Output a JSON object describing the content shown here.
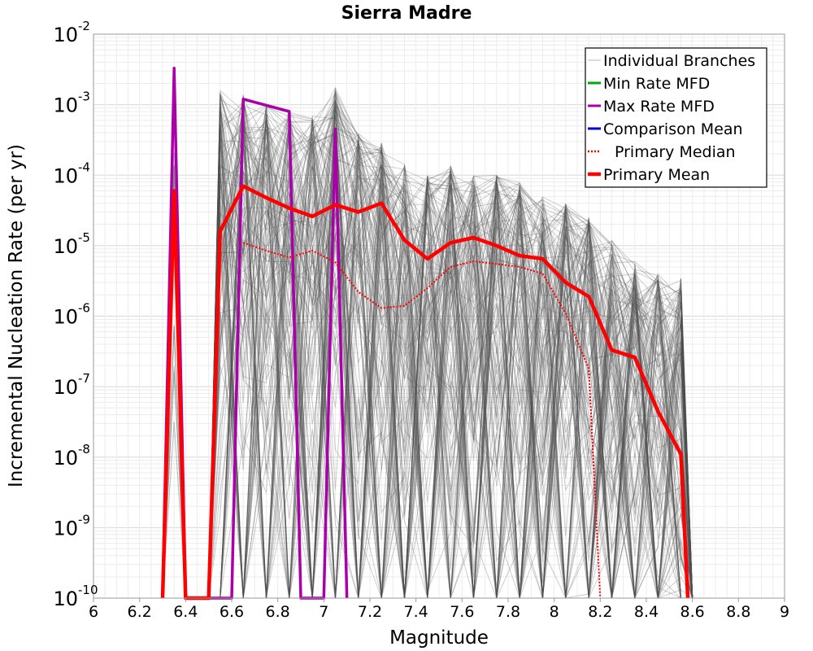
{
  "chart_data": {
    "type": "line",
    "title": "Sierra Madre",
    "xlabel": "Magnitude",
    "ylabel": "Incremental Nucleation Rate (per yr)",
    "xlim": [
      6,
      9
    ],
    "ylim": [
      1e-10,
      0.01
    ],
    "yscale": "log",
    "grid": true,
    "legend_position": "top-right",
    "x_ticks": [
      "6",
      "6.2",
      "6.4",
      "6.6",
      "6.8",
      "7",
      "7.2",
      "7.4",
      "7.6",
      "7.8",
      "8",
      "8.2",
      "8.4",
      "8.6",
      "8.8",
      "9"
    ],
    "y_ticks": [
      {
        "base": "10",
        "exp": "-10",
        "value": 1e-10
      },
      {
        "base": "10",
        "exp": "-9",
        "value": 1e-09
      },
      {
        "base": "10",
        "exp": "-8",
        "value": 1e-08
      },
      {
        "base": "10",
        "exp": "-7",
        "value": 1e-07
      },
      {
        "base": "10",
        "exp": "-6",
        "value": 1e-06
      },
      {
        "base": "10",
        "exp": "-5",
        "value": 1e-05
      },
      {
        "base": "10",
        "exp": "-4",
        "value": 0.0001
      },
      {
        "base": "10",
        "exp": "-3",
        "value": 0.001
      },
      {
        "base": "10",
        "exp": "-2",
        "value": 0.01
      }
    ],
    "series": [
      {
        "name": "Individual Branches",
        "color": "#505050",
        "style": "thin",
        "x": [
          6.55,
          6.65,
          6.75,
          6.85,
          6.95,
          7.05,
          7.15,
          7.25,
          7.35,
          7.45,
          7.55,
          7.65,
          7.75,
          7.85,
          7.95,
          8.05,
          8.15,
          8.25,
          8.35,
          8.45,
          8.55
        ],
        "envelope_max": [
          0.0016,
          0.0014,
          0.001,
          0.0008,
          0.0007,
          0.0018,
          0.0004,
          0.0003,
          0.00015,
          0.0001,
          0.00014,
          0.0001,
          0.0001,
          8e-05,
          5e-05,
          4e-05,
          2.5e-05,
          1.2e-05,
          6e-06,
          4e-06,
          3.5e-06
        ]
      },
      {
        "name": "Min Rate MFD",
        "color": "#00aa00",
        "style": "solid",
        "x": [],
        "y": []
      },
      {
        "name": "Max Rate MFD",
        "color": "#aa00aa",
        "style": "solid",
        "x": [
          6.3,
          6.35,
          6.4,
          6.6,
          6.65,
          6.85,
          6.9,
          7.0,
          7.05,
          7.1
        ],
        "y": [
          1e-10,
          0.0033,
          1e-10,
          1e-10,
          0.0012,
          0.0008,
          1e-10,
          1e-10,
          0.00045,
          1e-10
        ]
      },
      {
        "name": "Comparison Mean",
        "color": "#0000dd",
        "style": "solid",
        "x": [],
        "y": []
      },
      {
        "name": "Primary Median",
        "color": "#ff0000",
        "style": "dotted",
        "x": [
          6.65,
          6.75,
          6.85,
          6.95,
          7.05,
          7.15,
          7.25,
          7.35,
          7.45,
          7.55,
          7.65,
          7.75,
          7.85,
          7.95,
          8.05,
          8.15,
          8.2
        ],
        "y": [
          1.1e-05,
          8.5e-06,
          6.8e-06,
          8.5e-06,
          5.8e-06,
          2.2e-06,
          1.3e-06,
          1.4e-06,
          2.5e-06,
          5e-06,
          6e-06,
          5.5e-06,
          5e-06,
          4e-06,
          1.1e-06,
          1.8e-07,
          1e-10
        ]
      },
      {
        "name": "Primary Mean",
        "color": "#ff0000",
        "style": "thick",
        "x": [
          6.3,
          6.35,
          6.4,
          6.5,
          6.55,
          6.65,
          6.75,
          6.85,
          6.95,
          7.05,
          7.15,
          7.25,
          7.35,
          7.45,
          7.55,
          7.65,
          7.75,
          7.85,
          7.95,
          8.05,
          8.15,
          8.25,
          8.35,
          8.45,
          8.55,
          8.58
        ],
        "y": [
          1e-10,
          6e-05,
          1e-10,
          1e-10,
          1.6e-05,
          7e-05,
          4.8e-05,
          3.4e-05,
          2.6e-05,
          3.8e-05,
          3e-05,
          4e-05,
          1.2e-05,
          6.5e-06,
          1.1e-05,
          1.3e-05,
          1e-05,
          7.2e-06,
          6.5e-06,
          3e-06,
          1.9e-06,
          3.3e-07,
          2.6e-07,
          4.5e-08,
          1.1e-08,
          1e-10
        ]
      }
    ]
  }
}
